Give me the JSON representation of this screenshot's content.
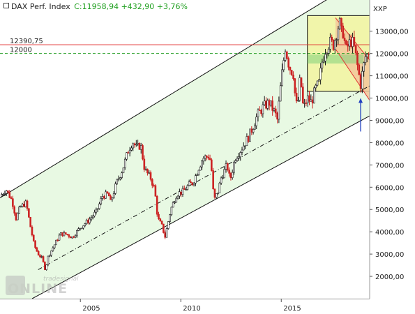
{
  "header": {
    "symbol": "DAX Perf. Index",
    "quote": "C:11958,94 +432,90 +3,76%",
    "currency": "XXP"
  },
  "colors": {
    "background": "#ffffff",
    "channel_fill": "#e8f9e3",
    "up_candle": "#1a1a1a",
    "down_candle": "#cc2222",
    "resistance_line": "#e03030",
    "support_line": "#2aa02a",
    "box_fill": "#f2f5a0",
    "down_channel_fill": "#f3c79b",
    "arrow": "#2040c0",
    "quote_text": "#20a020",
    "label_red": "#e02020",
    "label_green": "#20a020"
  },
  "watermark": {
    "brand": "tradesignal",
    "wordmark": "ONLINE"
  },
  "chart_data": {
    "type": "candlestick",
    "title": "DAX Perf. Index",
    "y_axis": {
      "min": 1000,
      "max": 14400,
      "ticks": [
        "2000,00",
        "3000,00",
        "4000,00",
        "5000,00",
        "6000,00",
        "7000,00",
        "8000,00",
        "9000,00",
        "10000,00",
        "11000,00",
        "12000,00",
        "13000,00"
      ],
      "tick_values": [
        2000,
        3000,
        4000,
        5000,
        6000,
        7000,
        8000,
        9000,
        10000,
        11000,
        12000,
        13000
      ]
    },
    "x_axis": {
      "min": 2001.0,
      "max": 2019.4,
      "ticks": [
        "2005",
        "2010",
        "2015"
      ],
      "tick_values": [
        2005,
        2010,
        2015
      ]
    },
    "horizontal_lines": [
      {
        "label": "12390,75",
        "value": 12390.75,
        "style": "solid",
        "color": "#e03030"
      },
      {
        "label": "12000",
        "value": 12000,
        "style": "dashed",
        "color": "#2aa02a"
      }
    ],
    "last_close": 11958.94,
    "uptrend_channel": {
      "upper": [
        [
          2001.0,
          5520
        ],
        [
          2019.4,
          15580
        ]
      ],
      "lower": [
        [
          2002.6,
          1000
        ],
        [
          2019.4,
          9200
        ]
      ],
      "mid_dashdot": [
        [
          2002.9,
          2300
        ],
        [
          2019.4,
          10550
        ]
      ]
    },
    "consolidation_box": {
      "x": [
        2016.3,
        2019.4
      ],
      "y": [
        10300,
        13700
      ]
    },
    "down_channel": {
      "upper": [
        [
          2017.7,
          13600
        ],
        [
          2019.4,
          11700
        ]
      ],
      "lower": [
        [
          2017.7,
          12200
        ],
        [
          2019.4,
          9900
        ]
      ]
    },
    "support_band": {
      "x": [
        2016.3,
        2019.1
      ],
      "y": [
        11550,
        11950
      ]
    },
    "annotation_arrow": {
      "x": 2018.95,
      "from": 8500,
      "to": 10000
    },
    "closes": [
      [
        2001.0,
        5600
      ],
      [
        2001.3,
        5900
      ],
      [
        2001.6,
        5400
      ],
      [
        2001.8,
        4600
      ],
      [
        2002.0,
        5100
      ],
      [
        2002.3,
        5300
      ],
      [
        2002.5,
        4300
      ],
      [
        2002.7,
        3400
      ],
      [
        2002.9,
        3000
      ],
      [
        2003.1,
        2800
      ],
      [
        2003.25,
        2300
      ],
      [
        2003.4,
        2900
      ],
      [
        2003.7,
        3400
      ],
      [
        2004.0,
        3900
      ],
      [
        2004.3,
        3900
      ],
      [
        2004.6,
        3750
      ],
      [
        2005.0,
        4200
      ],
      [
        2005.4,
        4500
      ],
      [
        2005.8,
        4900
      ],
      [
        2006.1,
        5600
      ],
      [
        2006.4,
        5700
      ],
      [
        2006.5,
        5300
      ],
      [
        2006.8,
        6200
      ],
      [
        2007.1,
        6800
      ],
      [
        2007.4,
        7700
      ],
      [
        2007.6,
        8050
      ],
      [
        2007.8,
        7750
      ],
      [
        2008.0,
        7900
      ],
      [
        2008.2,
        6800
      ],
      [
        2008.5,
        6400
      ],
      [
        2008.7,
        5900
      ],
      [
        2008.85,
        4600
      ],
      [
        2009.1,
        4200
      ],
      [
        2009.2,
        3700
      ],
      [
        2009.5,
        5000
      ],
      [
        2009.8,
        5700
      ],
      [
        2010.1,
        5800
      ],
      [
        2010.4,
        6100
      ],
      [
        2010.6,
        6200
      ],
      [
        2010.9,
        6900
      ],
      [
        2011.1,
        7300
      ],
      [
        2011.4,
        7400
      ],
      [
        2011.5,
        7100
      ],
      [
        2011.65,
        5400
      ],
      [
        2011.85,
        5800
      ],
      [
        2012.0,
        6400
      ],
      [
        2012.3,
        7000
      ],
      [
        2012.45,
        6300
      ],
      [
        2012.7,
        7300
      ],
      [
        2013.0,
        7700
      ],
      [
        2013.4,
        8300
      ],
      [
        2013.8,
        9200
      ],
      [
        2014.1,
        9600
      ],
      [
        2014.4,
        9800
      ],
      [
        2014.7,
        9300
      ],
      [
        2014.8,
        9000
      ],
      [
        2015.0,
        10800
      ],
      [
        2015.2,
        12300
      ],
      [
        2015.4,
        11400
      ],
      [
        2015.6,
        11100
      ],
      [
        2015.7,
        10000
      ],
      [
        2015.8,
        9500
      ],
      [
        2015.95,
        11000
      ],
      [
        2016.1,
        9500
      ],
      [
        2016.3,
        10000
      ],
      [
        2016.5,
        9800
      ],
      [
        2016.7,
        10400
      ],
      [
        2016.9,
        10700
      ],
      [
        2017.0,
        11500
      ],
      [
        2017.2,
        12200
      ],
      [
        2017.4,
        12500
      ],
      [
        2017.6,
        12400
      ],
      [
        2017.8,
        13100
      ],
      [
        2017.9,
        13400
      ],
      [
        2018.0,
        12900
      ],
      [
        2018.1,
        13000
      ],
      [
        2018.2,
        12100
      ],
      [
        2018.35,
        12400
      ],
      [
        2018.5,
        12600
      ],
      [
        2018.65,
        12200
      ],
      [
        2018.8,
        11400
      ],
      [
        2018.95,
        10600
      ],
      [
        2019.05,
        11200
      ],
      [
        2019.2,
        11900
      ],
      [
        2019.35,
        11958.94
      ]
    ]
  }
}
